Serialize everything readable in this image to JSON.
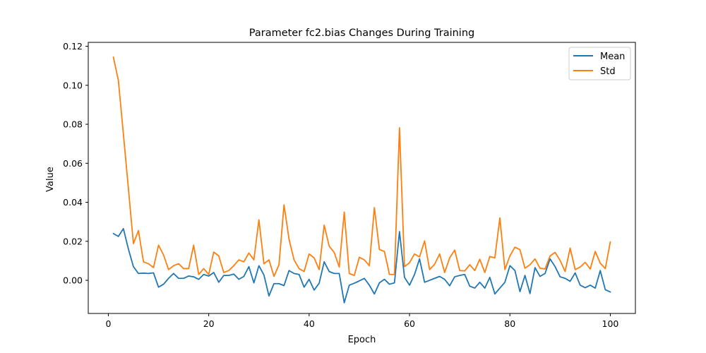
{
  "chart_data": {
    "type": "line",
    "title": "Parameter fc2.bias Changes During Training",
    "xlabel": "Epoch",
    "ylabel": "Value",
    "xlim": [
      -4,
      105
    ],
    "ylim": [
      -0.017,
      0.122
    ],
    "xticks": [
      0,
      20,
      40,
      60,
      80,
      100
    ],
    "xtick_labels": [
      "0",
      "20",
      "40",
      "60",
      "80",
      "100"
    ],
    "yticks": [
      0.0,
      0.02,
      0.04,
      0.06,
      0.08,
      0.1,
      0.12
    ],
    "ytick_labels": [
      "0.00",
      "0.02",
      "0.04",
      "0.06",
      "0.08",
      "0.10",
      "0.12"
    ],
    "grid": false,
    "legend_position": "top-right",
    "x": [
      1,
      2,
      3,
      4,
      5,
      6,
      7,
      8,
      9,
      10,
      11,
      12,
      13,
      14,
      15,
      16,
      17,
      18,
      19,
      20,
      21,
      22,
      23,
      24,
      25,
      26,
      27,
      28,
      29,
      30,
      31,
      32,
      33,
      34,
      35,
      36,
      37,
      38,
      39,
      40,
      41,
      42,
      43,
      44,
      45,
      46,
      47,
      48,
      49,
      50,
      51,
      52,
      53,
      54,
      55,
      56,
      57,
      58,
      59,
      60,
      61,
      62,
      63,
      64,
      65,
      66,
      67,
      68,
      69,
      70,
      71,
      72,
      73,
      74,
      75,
      76,
      77,
      78,
      79,
      80,
      81,
      82,
      83,
      84,
      85,
      86,
      87,
      88,
      89,
      90,
      91,
      92,
      93,
      94,
      95,
      96,
      97,
      98,
      99,
      100
    ],
    "series": [
      {
        "name": "Mean",
        "color": "#1f77b4",
        "values": [
          0.024,
          0.0225,
          0.0265,
          0.016,
          0.007,
          0.0035,
          0.0037,
          0.0035,
          0.0038,
          -0.0035,
          -0.002,
          0.001,
          0.0035,
          0.001,
          0.001,
          0.0022,
          0.0018,
          0.0005,
          0.003,
          0.0022,
          0.004,
          -0.001,
          0.0025,
          0.0025,
          0.0032,
          0.0005,
          0.002,
          0.007,
          -0.0013,
          0.0075,
          0.0027,
          -0.008,
          -0.0017,
          -0.0017,
          -0.0027,
          0.005,
          0.0035,
          0.003,
          -0.0035,
          0.0005,
          -0.005,
          -0.0015,
          0.0095,
          0.0045,
          0.0035,
          0.0035,
          -0.0115,
          -0.0025,
          -0.0015,
          -0.0003,
          0.001,
          -0.0025,
          -0.007,
          -0.0013,
          0.0005,
          -0.002,
          -0.0013,
          0.025,
          0.0015,
          -0.0025,
          0.003,
          0.011,
          -0.001,
          0,
          0.001,
          0.002,
          0.0005,
          -0.0028,
          0.0018,
          0.0025,
          0.003,
          -0.003,
          -0.004,
          -0.001,
          -0.004,
          0.0015,
          -0.007,
          -0.004,
          -0.001,
          0.0075,
          0.005,
          -0.0058,
          0.0025,
          -0.0068,
          0.0065,
          0.002,
          0.0035,
          0.011,
          0.007,
          0.0018,
          0.001,
          -0.0005,
          0.0038,
          -0.0025,
          -0.0038,
          -0.0025,
          -0.004,
          0.005,
          -0.0048,
          -0.006
        ]
      },
      {
        "name": "Std",
        "color": "#ff7f0e",
        "values": [
          0.1145,
          0.1025,
          0.075,
          0.047,
          0.0188,
          0.0255,
          0.0095,
          0.0085,
          0.0065,
          0.018,
          0.013,
          0.0055,
          0.0075,
          0.0085,
          0.006,
          0.006,
          0.018,
          0.003,
          0.006,
          0.003,
          0.0145,
          0.0125,
          0.004,
          0.005,
          0.0075,
          0.0105,
          0.0095,
          0.014,
          0.0105,
          0.031,
          0.0085,
          0.0105,
          0.002,
          0.008,
          0.0387,
          0.021,
          0.0105,
          0.006,
          0.0045,
          0.0135,
          0.0115,
          0.0055,
          0.0283,
          0.0175,
          0.0143,
          0.0068,
          0.035,
          0.0035,
          0.0025,
          0.0118,
          0.0105,
          0.0075,
          0.0373,
          0.0158,
          0.0148,
          0.003,
          0.003,
          0.0782,
          0.007,
          0.009,
          0.0135,
          0.012,
          0.0202,
          0.0055,
          0.0082,
          0.0135,
          0.004,
          0.0115,
          0.0155,
          0.005,
          0.0048,
          0.008,
          0.005,
          0.0108,
          0.004,
          0.0122,
          0.0115,
          0.032,
          0.0055,
          0.0125,
          0.017,
          0.0157,
          0.0062,
          0.008,
          0.011,
          0.0062,
          0.0058,
          0.0125,
          0.0143,
          0.0102,
          0.0045,
          0.0165,
          0.0055,
          0.0068,
          0.0092,
          0.0058,
          0.0148,
          0.0088,
          0.006,
          0.0197
        ]
      }
    ]
  }
}
